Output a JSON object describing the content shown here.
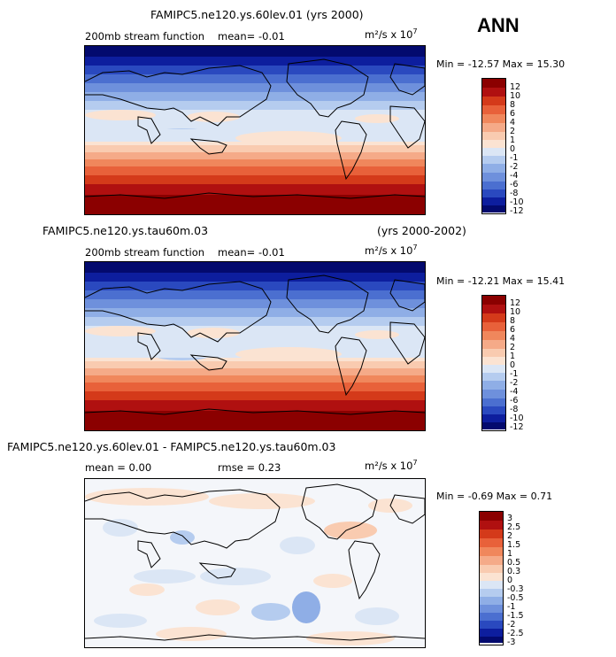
{
  "season": "ANN",
  "panels": [
    {
      "title": "FAMIPC5.ne120.ys.60lev.01 (yrs 2000)",
      "field": "200mb stream function",
      "mean_label": "mean=",
      "mean": "-0.01",
      "units": "m²/s x 10",
      "units_exp": "7",
      "stats": "Min = -12.57  Max =  15.30"
    },
    {
      "title": "FAMIPC5.ne120.ys.tau60m.03",
      "years": "(yrs 2000-2002)",
      "field": "200mb stream function",
      "mean_label": "mean=",
      "mean": "-0.01",
      "units": "m²/s x 10",
      "units_exp": "7",
      "stats": "Min = -12.21  Max =  15.41"
    },
    {
      "title": "FAMIPC5.ne120.ys.60lev.01 - FAMIPC5.ne120.ys.tau60m.03",
      "mean_text": "mean =   0.00",
      "rmse_text": "rmse =    0.23",
      "units": "m²/s x 10",
      "units_exp": "7",
      "stats": "Min = -0.69  Max =   0.71"
    }
  ],
  "colorbar_levels": [
    "12",
    "10",
    "8",
    "6",
    "4",
    "2",
    "1",
    "0",
    "-1",
    "-2",
    "-4",
    "-6",
    "-8",
    "-10",
    "-12"
  ],
  "diff_colorbar_levels": [
    "3",
    "2.5",
    "2",
    "1.5",
    "1",
    "0.5",
    "0.3",
    "0",
    "-0.3",
    "-0.5",
    "-1",
    "-1.5",
    "-2",
    "-2.5",
    "-3"
  ],
  "colors": [
    "#8b0000",
    "#b01010",
    "#d43a1a",
    "#e8613a",
    "#f0875c",
    "#f5aa88",
    "#f9cbb0",
    "#fbe3d2",
    "#dbe6f5",
    "#b5ccef",
    "#8faee6",
    "#6e90dc",
    "#4b6fd0",
    "#2a49bf",
    "#0d1e9e",
    "#030a6e"
  ]
}
